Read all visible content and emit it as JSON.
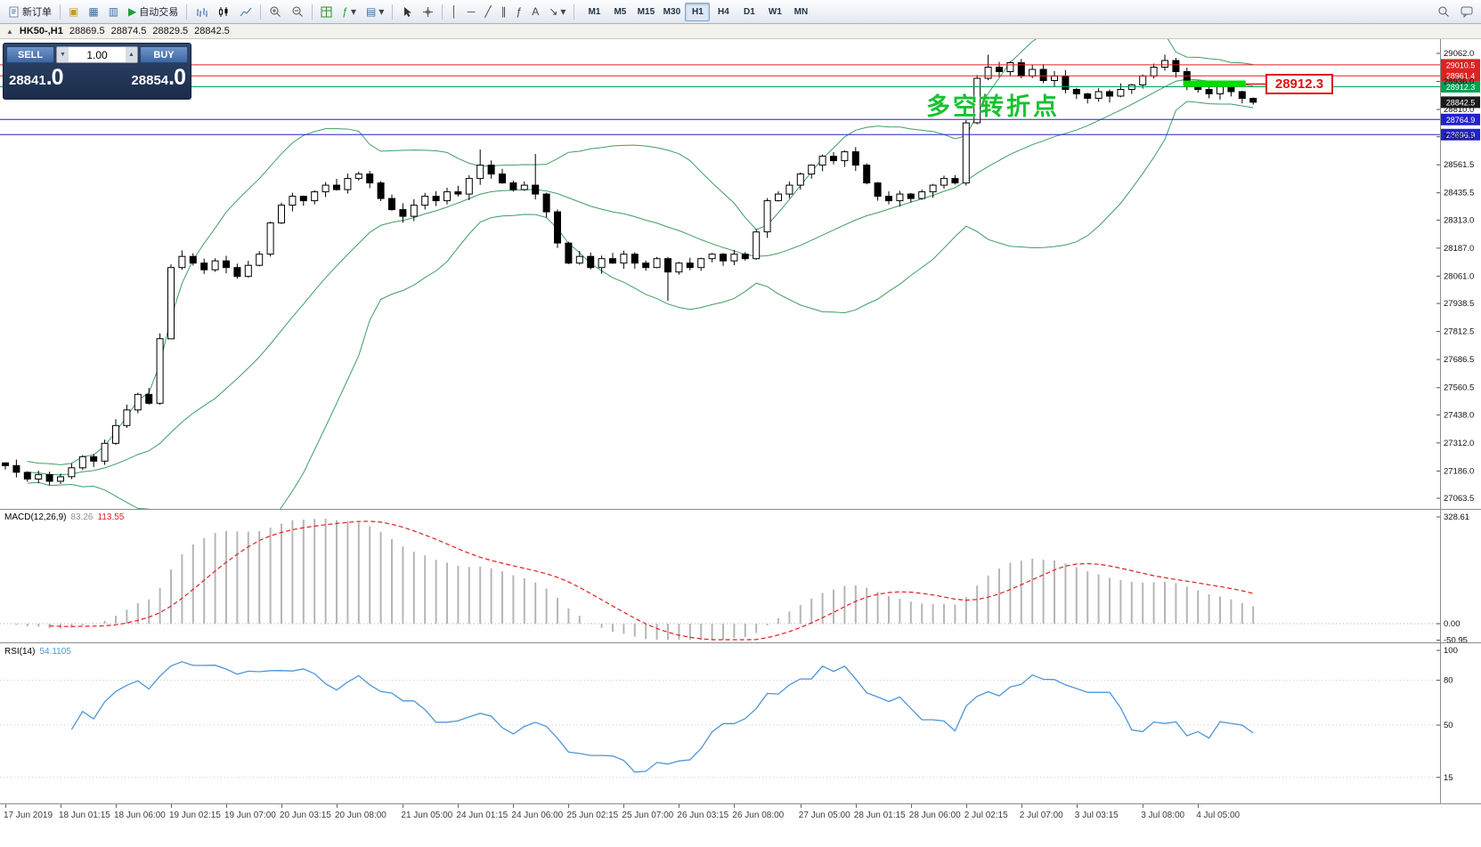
{
  "toolbar": {
    "new_order_label": "新订单",
    "auto_trading_label": "自动交易",
    "timeframes": [
      "M1",
      "M5",
      "M15",
      "M30",
      "H1",
      "H4",
      "D1",
      "W1",
      "MN"
    ],
    "active_timeframe": "H1"
  },
  "icons": {
    "collapse": "▲",
    "charts": "▣",
    "profiles": "▦",
    "market_watch": "▥",
    "auto_play": "▶",
    "indicators": "ƒ",
    "templates": "▤",
    "dropdown": "▾",
    "vline": "│",
    "hline": "─",
    "trendline": "╱",
    "channel": "∥",
    "fibonacci": "ƒ",
    "text_tool": "A",
    "arrow_tool": "↘",
    "spinner_up": "▲",
    "spinner_down": "▼"
  },
  "chart_header": {
    "symbol_period": "HK50-,H1",
    "open": "28869.5",
    "high": "28874.5",
    "low": "28829.5",
    "close": "28842.5"
  },
  "trade_panel": {
    "sell_label": "SELL",
    "buy_label": "BUY",
    "volume": "1.00",
    "sell_price_main": "28841",
    "sell_price_big": ".0",
    "buy_price_main": "28854",
    "buy_price_big": ".0"
  },
  "annotation": {
    "text": "多空转折点",
    "color": "#17c230"
  },
  "price_callout": {
    "text": "28912.3"
  },
  "indicator_labels": {
    "macd_name": "MACD(12,26,9)",
    "macd_value1": "83.26",
    "macd_value2": "113.55",
    "rsi_name": "RSI(14)",
    "rsi_value": "54.1105"
  },
  "chart_data": {
    "type": "candlestick",
    "symbol": "HK50-",
    "timeframe": "H1",
    "colors": {
      "up": "#ffffff",
      "down": "#000000",
      "wick": "#000000",
      "bollinger": "#3f9e63",
      "macd_hist": "#b6b6b6",
      "macd_signal": "#e02020",
      "rsi": "#4f96d8",
      "axis_text": "#111111",
      "tag_last": "#1a1a1a",
      "highlight": "#00dd00",
      "callout": "#e01010"
    },
    "main": {
      "closes": [
        27210,
        27180,
        27150,
        27170,
        27140,
        27160,
        27200,
        27250,
        27230,
        27310,
        27390,
        27460,
        27530,
        27490,
        27780,
        28100,
        28150,
        28120,
        28090,
        28130,
        28100,
        28060,
        28110,
        28160,
        28300,
        28380,
        28420,
        28400,
        28440,
        28470,
        28450,
        28500,
        28520,
        28480,
        28410,
        28360,
        28330,
        28380,
        28420,
        28400,
        28440,
        28430,
        28500,
        28560,
        28520,
        28480,
        28450,
        28470,
        28430,
        28350,
        28210,
        28120,
        28150,
        28100,
        28140,
        28120,
        28160,
        28120,
        28100,
        28140,
        28080,
        28120,
        28100,
        28140,
        28160,
        28130,
        28160,
        28140,
        28260,
        28400,
        28430,
        28470,
        28520,
        28560,
        28600,
        28580,
        28620,
        28560,
        28480,
        28420,
        28400,
        28430,
        28410,
        28440,
        28470,
        28500,
        28480,
        28750,
        28950,
        29000,
        28980,
        29020,
        28960,
        28990,
        28940,
        28960,
        28900,
        28880,
        28860,
        28890,
        28870,
        28900,
        28920,
        28960,
        29000,
        29030,
        28980,
        28920,
        28900,
        28880,
        28920,
        28890,
        28860,
        28842.5
      ],
      "wick_overrides": {
        "15": {
          "low": 27900
        },
        "43": {
          "high": 28630
        },
        "48": {
          "high": 28610
        },
        "60": {
          "low": 27950
        },
        "89": {
          "high": 29056
        }
      },
      "bollinger": {
        "period": 20,
        "deviation": 2
      },
      "y_axis_ticks": [
        29062.0,
        28936.0,
        28810.0,
        28687.5,
        28561.5,
        28435.5,
        28313.0,
        28187.0,
        28061.0,
        27938.5,
        27812.5,
        27686.5,
        27560.5,
        27438.0,
        27312.0,
        27186.0,
        27063.5
      ],
      "price_lines": [
        {
          "price": 29010.5,
          "color": "#dd2222"
        },
        {
          "price": 28961.4,
          "color": "#dd2222"
        },
        {
          "price": 28912.3,
          "color": "#00a050"
        },
        {
          "price": 28764.9,
          "color": "#2222cc"
        },
        {
          "price": 28696.9,
          "color": "#2222cc"
        }
      ],
      "last_price": 28842.5,
      "highlight": {
        "from_index": 107,
        "to_index": 112,
        "price": 28912.3
      },
      "time_labels": [
        [
          "17 Jun 2019",
          0
        ],
        [
          "18 Jun 01:15",
          5
        ],
        [
          "18 Jun 06:00",
          10
        ],
        [
          "19 Jun 02:15",
          15
        ],
        [
          "19 Jun 07:00",
          20
        ],
        [
          "20 Jun 03:15",
          25
        ],
        [
          "20 Jun 08:00",
          30
        ],
        [
          "21 Jun 05:00",
          36
        ],
        [
          "24 Jun 01:15",
          41
        ],
        [
          "24 Jun 06:00",
          46
        ],
        [
          "25 Jun 02:15",
          51
        ],
        [
          "25 Jun 07:00",
          56
        ],
        [
          "26 Jun 03:15",
          61
        ],
        [
          "26 Jun 08:00",
          66
        ],
        [
          "27 Jun 05:00",
          72
        ],
        [
          "28 Jun 01:15",
          77
        ],
        [
          "28 Jun 06:00",
          82
        ],
        [
          "2 Jul 02:15",
          87
        ],
        [
          "2 Jul 07:00",
          92
        ],
        [
          "3 Jul 03:15",
          97
        ],
        [
          "3 Jul 08:00",
          103
        ],
        [
          "4 Jul 05:00",
          108
        ]
      ]
    },
    "macd": {
      "params": [
        12,
        26,
        9
      ],
      "current": [
        83.26,
        113.55
      ],
      "axis_labels": [
        328.61,
        0,
        -50.95
      ]
    },
    "rsi": {
      "period": 14,
      "current": 54.1105,
      "axis_labels": [
        100,
        80,
        50,
        15
      ]
    }
  }
}
